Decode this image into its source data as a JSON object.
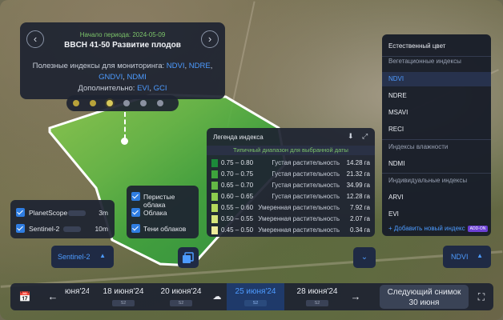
{
  "info_card": {
    "period": "Начало периода: 2024-05-09",
    "stage": "BBCH 41-50 Развитие плодов",
    "indices_label": "Полезные индексы для мониторинга:",
    "indices_links": [
      "NDVI",
      "NDRE",
      "GNDVI",
      "NDMI"
    ],
    "extra_label": "Дополнительно:",
    "extra_links": [
      "EVI",
      "GCI"
    ]
  },
  "legend": {
    "title": "Легенда индекса",
    "subtitle": "Типичный диапазон для выбранной даты",
    "rows": [
      {
        "range": "0.75 – 0.80",
        "desc": "Густая растительность",
        "area": "14.28 га",
        "color": "#1c8a3a"
      },
      {
        "range": "0.70 – 0.75",
        "desc": "Густая растительность",
        "area": "21.32 га",
        "color": "#3ea43c"
      },
      {
        "range": "0.65 – 0.70",
        "desc": "Густая растительность",
        "area": "34.99 га",
        "color": "#63b845"
      },
      {
        "range": "0.60 – 0.65",
        "desc": "Густая растительность",
        "area": "12.28 га",
        "color": "#8ccb4e"
      },
      {
        "range": "0.55 – 0.60",
        "desc": "Умеренная растительность",
        "area": "7.92 га",
        "color": "#b5d95c"
      },
      {
        "range": "0.50 – 0.55",
        "desc": "Умеренная растительность",
        "area": "2.07 га",
        "color": "#d5e57a"
      },
      {
        "range": "0.45 – 0.50",
        "desc": "Умеренная растительность",
        "area": "0.34 га",
        "color": "#edeb9a"
      }
    ]
  },
  "satellites": [
    {
      "label": "PlanetScope",
      "resolution": "3m"
    },
    {
      "label": "Sentinel-2",
      "resolution": "10m"
    }
  ],
  "clouds": [
    "Перистые облака",
    "Облака",
    "Тени облаков"
  ],
  "sentinel_button": "Sentinel-2",
  "ndvi_button": "NDVI",
  "menu": {
    "natural": "Естественный цвет",
    "veg_header": "Вегетационные индексы",
    "veg": [
      "NDVI",
      "NDRE",
      "MSAVI",
      "RECI"
    ],
    "moist_header": "Индексы влажности",
    "moist": [
      "NDMI"
    ],
    "indiv_header": "Индивидуальные индексы",
    "indiv": [
      "ARVI",
      "EVI"
    ],
    "add": "+ Добавить новый индекс",
    "add_badge": "ADD-ON"
  },
  "timeline": {
    "partial_date": "юня'24",
    "dates": [
      {
        "date": "18 июня'24",
        "sat": "S2"
      },
      {
        "date": "20 июня'24",
        "sat": "S2"
      },
      {
        "date": "25 июня'24",
        "sat": "S2"
      },
      {
        "date": "28 июня'24",
        "sat": "S2"
      }
    ],
    "next_label": "Следующий снимок",
    "next_date": "30 июня"
  },
  "colors": {
    "accent": "#4d9bff",
    "green_text": "#7cc46a",
    "panel": "#1e2432"
  }
}
